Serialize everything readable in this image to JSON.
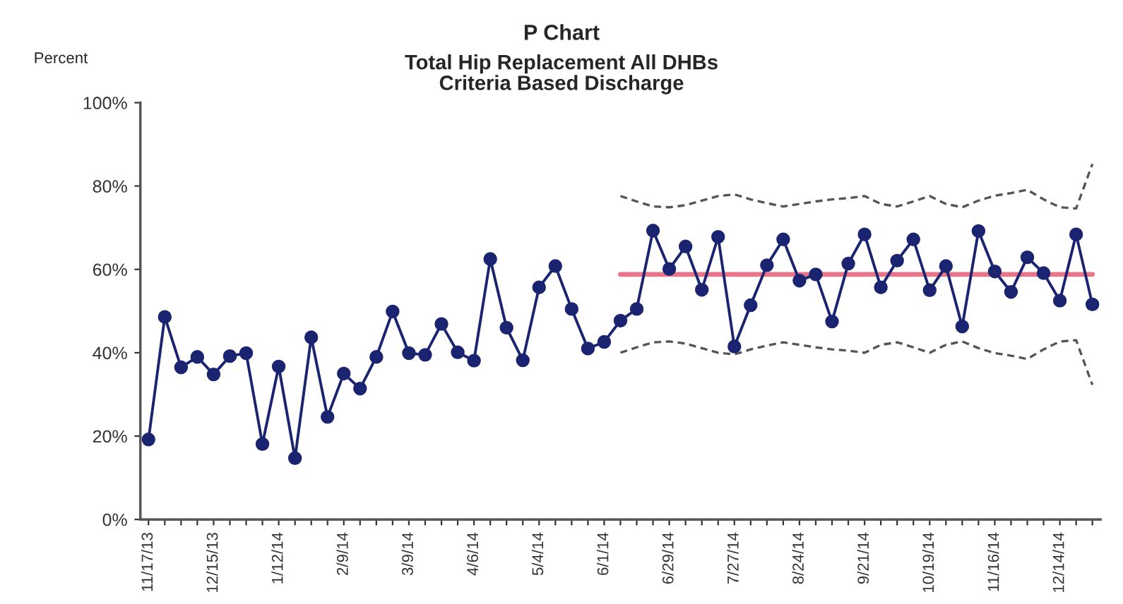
{
  "chart_data": {
    "type": "line",
    "title": "P Chart",
    "subtitle": "Total Hip Replacement All DHBs\nCriteria Based Discharge",
    "ylabel": "Percent",
    "categories": [
      "11/17/13",
      null,
      null,
      null,
      "12/15/13",
      null,
      null,
      null,
      "1/12/14",
      null,
      null,
      null,
      "2/9/14",
      null,
      null,
      null,
      "3/9/14",
      null,
      null,
      null,
      "4/6/14",
      null,
      null,
      null,
      "5/4/14",
      null,
      null,
      null,
      "6/1/14",
      null,
      null,
      null,
      "6/29/14",
      null,
      null,
      null,
      "7/27/14",
      null,
      null,
      null,
      "8/24/14",
      null,
      null,
      null,
      "9/21/14",
      null,
      null,
      null,
      "10/19/14",
      null,
      null,
      null,
      "11/16/14",
      null,
      null,
      null,
      "12/14/14",
      null,
      null
    ],
    "ylim": [
      0,
      100
    ],
    "yticks": [
      {
        "value": 0,
        "label": "0%"
      },
      {
        "value": 20,
        "label": "20%"
      },
      {
        "value": 40,
        "label": "40%"
      },
      {
        "value": 60,
        "label": "60%"
      },
      {
        "value": 80,
        "label": "80%"
      },
      {
        "value": 100,
        "label": "100%"
      }
    ],
    "grid": false,
    "legend": false,
    "series": [
      {
        "color": "#1a2470",
        "marker": "circle",
        "line_style": "solid",
        "values": [
          19.2,
          48.6,
          36.5,
          39.0,
          34.8,
          39.2,
          39.9,
          18.1,
          36.7,
          14.7,
          43.7,
          24.6,
          35.0,
          31.4,
          39.0,
          49.9,
          39.9,
          39.5,
          46.9,
          40.1,
          38.1,
          62.5,
          46.0,
          38.2,
          55.7,
          60.8,
          50.5,
          41.0,
          42.6,
          47.7,
          50.5,
          69.3,
          60.1,
          65.5,
          55.1,
          67.8,
          41.5,
          51.4,
          61.0,
          67.2,
          57.3,
          58.8,
          47.5,
          61.4,
          68.4,
          55.7,
          62.1,
          67.2,
          55.0,
          60.8,
          46.3,
          69.2,
          59.5,
          54.6,
          62.9,
          59.1,
          52.5,
          68.4,
          51.6
        ]
      },
      {
        "color": "#e8768a",
        "marker": "none",
        "line_style": "solid",
        "values": [
          null,
          null,
          null,
          null,
          null,
          null,
          null,
          null,
          null,
          null,
          null,
          null,
          null,
          null,
          null,
          null,
          null,
          null,
          null,
          null,
          null,
          null,
          null,
          null,
          null,
          null,
          null,
          null,
          null,
          58.8,
          58.8,
          58.8,
          58.8,
          58.8,
          58.8,
          58.8,
          58.8,
          58.8,
          58.8,
          58.8,
          58.8,
          58.8,
          58.8,
          58.8,
          58.8,
          58.8,
          58.8,
          58.8,
          58.8,
          58.8,
          58.8,
          58.8,
          58.8,
          58.8,
          58.8,
          58.8,
          58.8,
          58.8,
          58.8
        ]
      },
      {
        "color": "#555555",
        "marker": "none",
        "line_style": "dashed",
        "values": [
          null,
          null,
          null,
          null,
          null,
          null,
          null,
          null,
          null,
          null,
          null,
          null,
          null,
          null,
          null,
          null,
          null,
          null,
          null,
          null,
          null,
          null,
          null,
          null,
          null,
          null,
          null,
          null,
          null,
          77.6,
          76.3,
          75.1,
          74.9,
          75.4,
          76.5,
          77.6,
          78.0,
          76.8,
          75.9,
          75.1,
          75.7,
          76.3,
          76.8,
          77.1,
          77.6,
          75.7,
          75.1,
          76.3,
          77.6,
          75.7,
          74.9,
          76.5,
          77.7,
          78.3,
          79.1,
          76.8,
          74.9,
          74.6,
          85.3
        ]
      },
      {
        "color": "#555555",
        "marker": "none",
        "line_style": "dashed",
        "values": [
          null,
          null,
          null,
          null,
          null,
          null,
          null,
          null,
          null,
          null,
          null,
          null,
          null,
          null,
          null,
          null,
          null,
          null,
          null,
          null,
          null,
          null,
          null,
          null,
          null,
          null,
          null,
          null,
          null,
          40.0,
          41.3,
          42.5,
          42.7,
          42.2,
          41.1,
          40.0,
          39.6,
          40.8,
          41.7,
          42.5,
          41.9,
          41.3,
          40.8,
          40.5,
          40.0,
          41.9,
          42.5,
          41.3,
          40.0,
          41.9,
          42.7,
          41.1,
          39.9,
          39.3,
          38.5,
          40.8,
          42.7,
          43.0,
          32.3
        ]
      }
    ]
  }
}
